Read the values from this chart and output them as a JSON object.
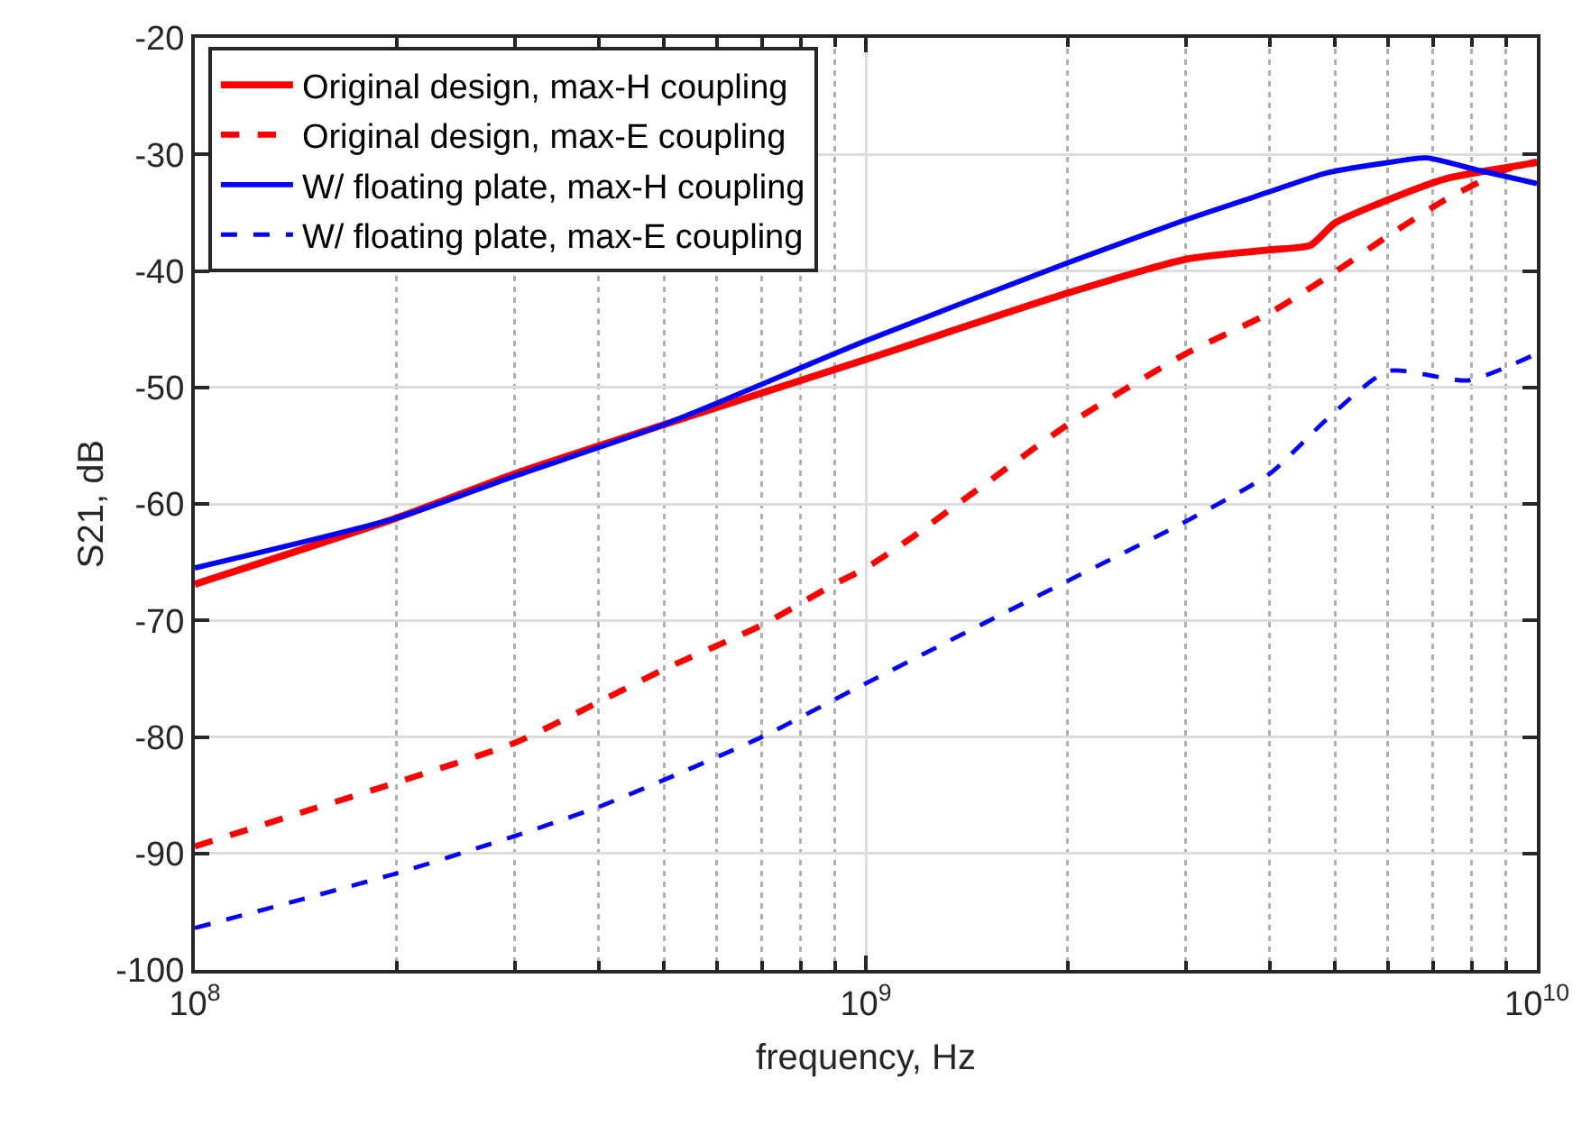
{
  "chart_data": {
    "type": "line",
    "xlabel": "frequency, Hz",
    "ylabel": "S21, dB",
    "log": "x",
    "grid": true,
    "legend": "top left",
    "xlim": [
      100000000,
      10000000000
    ],
    "xticks": [
      {
        "value": 100000000,
        "label": "10$^{8}$"
      },
      {
        "value": 1000000000,
        "label": "10$^{9}$"
      },
      {
        "value": 10000000000,
        "label": "10$^{10}$"
      }
    ],
    "ylim": [
      -100,
      -20
    ],
    "yticks": [
      -100,
      -90,
      -80,
      -70,
      -60,
      -50,
      -40,
      -30,
      -20
    ],
    "series": [
      {
        "name": "Original design, max-H coupling",
        "color": "#ff0000",
        "line_style": "solid",
        "x": [
          100000000.0,
          200000000.0,
          300000000.0,
          500000000.0,
          1000000000.0,
          2000000000.0,
          3000000000.0,
          4000000000.0,
          4600000000.0,
          5000000000.0,
          6000000000.0,
          7300000000.0,
          10000000000.0
        ],
        "values": [
          -66.9,
          -61.2,
          -57.4,
          -53.2,
          -47.6,
          -41.9,
          -39.0,
          -38.2,
          -37.8,
          -35.9,
          -33.9,
          -32.1,
          -30.7
        ]
      },
      {
        "name": "Original design, max-E coupling",
        "color": "#ff0000",
        "line_style": "dashed",
        "x": [
          100000000.0,
          144000000.0,
          200000000.0,
          300000000.0,
          400000000.0,
          500000000.0,
          700000000.0,
          890000000.0,
          1000000000.0,
          1150000000.0,
          2000000000.0,
          3000000000.0,
          4000000000.0,
          5000000000.0,
          6000000000.0,
          7300000000.0,
          9000000000.0,
          10000000000.0
        ],
        "values": [
          -89.4,
          -86.5,
          -83.9,
          -80.5,
          -77.0,
          -74.2,
          -70.4,
          -67.0,
          -65.5,
          -63.2,
          -53.2,
          -47.1,
          -43.6,
          -40.1,
          -37.0,
          -33.9,
          -31.3,
          -30.6
        ]
      },
      {
        "name": "W/ floating plate, max-H coupling",
        "color": "#0000ff",
        "line_style": "solid",
        "x": [
          100000000.0,
          200000000.0,
          300000000.0,
          500000000.0,
          1000000000.0,
          2000000000.0,
          3000000000.0,
          4000000000.0,
          4850000000.0,
          6000000000.0,
          6850000000.0,
          8100000000.0,
          10000000000.0
        ],
        "values": [
          -65.5,
          -61.2,
          -57.6,
          -53.2,
          -46.0,
          -39.3,
          -35.6,
          -33.2,
          -31.6,
          -30.7,
          -30.3,
          -31.3,
          -32.5
        ]
      },
      {
        "name": "W/ floating plate, max-E coupling",
        "color": "#0000ff",
        "line_style": "dashed",
        "x": [
          100000000.0,
          200000000.0,
          300000000.0,
          400000000.0,
          500000000.0,
          700000000.0,
          1000000000.0,
          2000000000.0,
          3000000000.0,
          4000000000.0,
          4850000000.0,
          6000000000.0,
          7900000000.0,
          10000000000.0
        ],
        "values": [
          -96.4,
          -91.7,
          -88.5,
          -86.0,
          -83.7,
          -80.0,
          -75.4,
          -66.6,
          -61.5,
          -57.4,
          -52.8,
          -48.6,
          -49.4,
          -47.1
        ]
      }
    ]
  }
}
